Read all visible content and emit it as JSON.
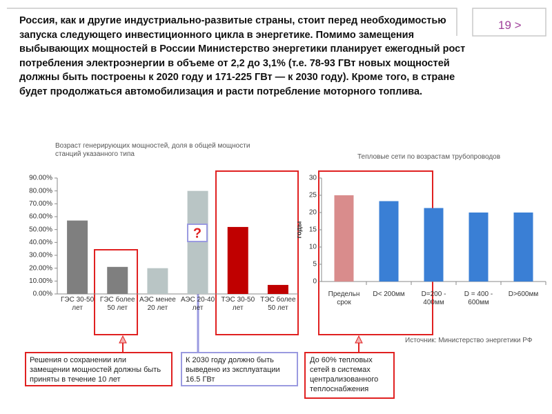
{
  "header": {
    "text": "Россия, как и другие индустриально-развитые страны, стоит перед необходимостью запуска следующего инвестиционного цикла в энергетике. Помимо замещения выбывающих мощностей в России Министерство энергетики планирует ежегодный рост потребления электроэнергии в объеме от 2,2 до 3,1% (т.е. 78-93 ГВт новых мощностей должны быть построены к 2020 году и 171-225 ГВт — к 2030 году). Кроме того, в стране будет продолжаться автомобилизация и расти потребление моторного топлива.",
    "page": "19 >"
  },
  "chart_data": [
    {
      "type": "bar",
      "title": "Возраст генерирующих мощностей, доля в общей мощности станций указанного типа",
      "categories": [
        "ГЭС 30-50 лет",
        "ГЭС более 50 лет",
        "АЭС менее 20 лет",
        "АЭС 20-40 лет",
        "ТЭС 30-50 лет",
        "ТЭС более 50 лет"
      ],
      "values": [
        57,
        21,
        20,
        80,
        52,
        7
      ],
      "colors": [
        "#7f7f7f",
        "#7f7f7f",
        "#b9c5c5",
        "#b9c5c5",
        "#c00000",
        "#c00000"
      ],
      "ylim": [
        0,
        90
      ],
      "yticks": [
        {
          "value": 0,
          "label": "0.00%"
        },
        {
          "value": 10,
          "label": "10.00%"
        },
        {
          "value": 20,
          "label": "20.00%"
        },
        {
          "value": 30,
          "label": "30.00%"
        },
        {
          "value": 40,
          "label": "40.00%"
        },
        {
          "value": 50,
          "label": "50.00%"
        },
        {
          "value": 60,
          "label": "60.00%"
        },
        {
          "value": 70,
          "label": "70.00%"
        },
        {
          "value": 80,
          "label": "80.00%"
        },
        {
          "value": 90,
          "label": "90.00%"
        }
      ],
      "annotation": "?"
    },
    {
      "type": "bar",
      "title": "Тепловые сети по возрастам трубопроводов",
      "ylabel": "годы",
      "categories": [
        "Предельн срок",
        "D< 200мм",
        "D=200 - 400мм",
        "D = 400 - 600мм",
        "D>600мм"
      ],
      "values": [
        25,
        23.3,
        21.3,
        20,
        20
      ],
      "colors": [
        "#d98c8c",
        "#3a7fd5",
        "#3a7fd5",
        "#3a7fd5",
        "#3a7fd5"
      ],
      "ylim": [
        0,
        30
      ],
      "yticks": [
        0,
        5,
        10,
        15,
        20,
        25,
        30
      ],
      "source": "Источник: Министерство энергетики РФ"
    }
  ],
  "callouts": [
    "Решения о сохранении или замещении мощностей должны быть приняты в течение 10 лет",
    "К 2030 году должно быть выведено из эксплуатации 16.5 ГВт",
    "До 60% тепловых сетей в системах централизованного теплоснабжения"
  ]
}
